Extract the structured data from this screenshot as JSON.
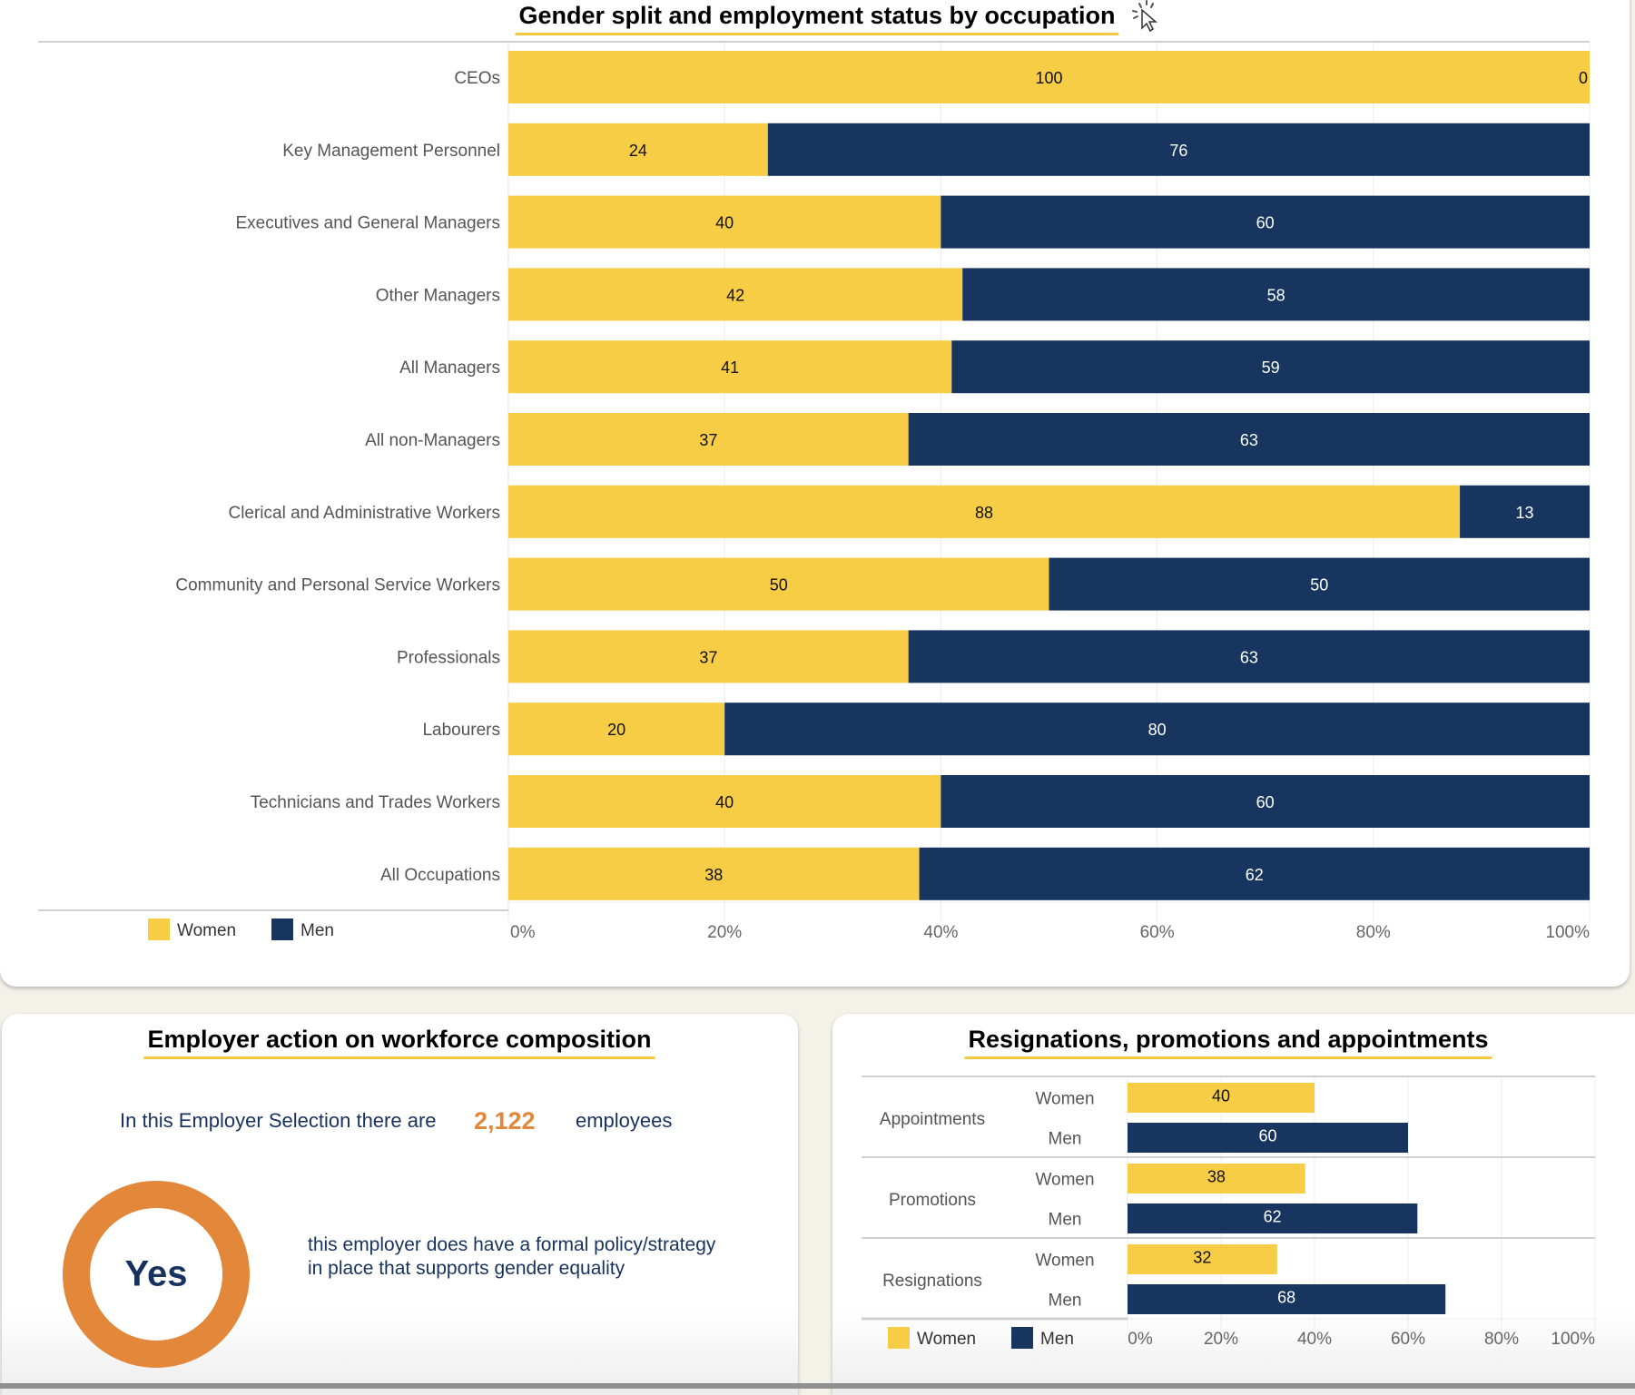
{
  "colors": {
    "women": "#f6cd45",
    "men": "#17355f",
    "accent": "#e3873a",
    "text_navy": "#17325e"
  },
  "main": {
    "title": "Gender split and employment status by occupation",
    "legend": [
      {
        "label": "Women"
      },
      {
        "label": "Men"
      }
    ]
  },
  "action": {
    "title": "Employer action on workforce composition",
    "employees_prefix": "In this Employer Selection there are",
    "employees_count": "2,122",
    "employees_suffix": "employees",
    "policy_answer": "Yes",
    "policy_text": "this employer does have a formal policy/strategy in place that supports gender equality"
  },
  "rpa": {
    "title": "Resignations, promotions and appointments",
    "legend": [
      {
        "label": "Women"
      },
      {
        "label": "Men"
      }
    ]
  },
  "chart_data": [
    {
      "type": "bar",
      "stacked": true,
      "orientation": "horizontal",
      "title": "Gender split and employment status by occupation",
      "xlabel": "",
      "ylabel": "",
      "xlim": [
        0,
        100
      ],
      "x_ticks": [
        "0%",
        "20%",
        "40%",
        "60%",
        "80%",
        "100%"
      ],
      "grid": true,
      "legend_position": "bottom-left",
      "categories": [
        "CEOs",
        "Key Management Personnel",
        "Executives and General Managers",
        "Other Managers",
        "All Managers",
        "All non-Managers",
        "Clerical and Administrative Workers",
        "Community and Personal Service Workers",
        "Professionals",
        "Labourers",
        "Technicians and Trades Workers",
        "All Occupations"
      ],
      "series": [
        {
          "name": "Women",
          "values": [
            100,
            24,
            40,
            42,
            41,
            37,
            88,
            50,
            37,
            20,
            40,
            38
          ]
        },
        {
          "name": "Men",
          "values": [
            0,
            76,
            60,
            58,
            59,
            63,
            13,
            50,
            63,
            80,
            60,
            62
          ]
        }
      ]
    },
    {
      "type": "bar",
      "orientation": "horizontal",
      "title": "Resignations, promotions and appointments",
      "xlim": [
        0,
        100
      ],
      "x_ticks": [
        "0%",
        "20%",
        "40%",
        "60%",
        "80%",
        "100%"
      ],
      "grid": true,
      "legend_position": "bottom-left",
      "groups": [
        {
          "name": "Appointments",
          "bars": [
            {
              "label": "Women",
              "value": 40
            },
            {
              "label": "Men",
              "value": 60
            }
          ]
        },
        {
          "name": "Promotions",
          "bars": [
            {
              "label": "Women",
              "value": 38
            },
            {
              "label": "Men",
              "value": 62
            }
          ]
        },
        {
          "name": "Resignations",
          "bars": [
            {
              "label": "Women",
              "value": 32
            },
            {
              "label": "Men",
              "value": 68
            }
          ]
        }
      ]
    }
  ]
}
